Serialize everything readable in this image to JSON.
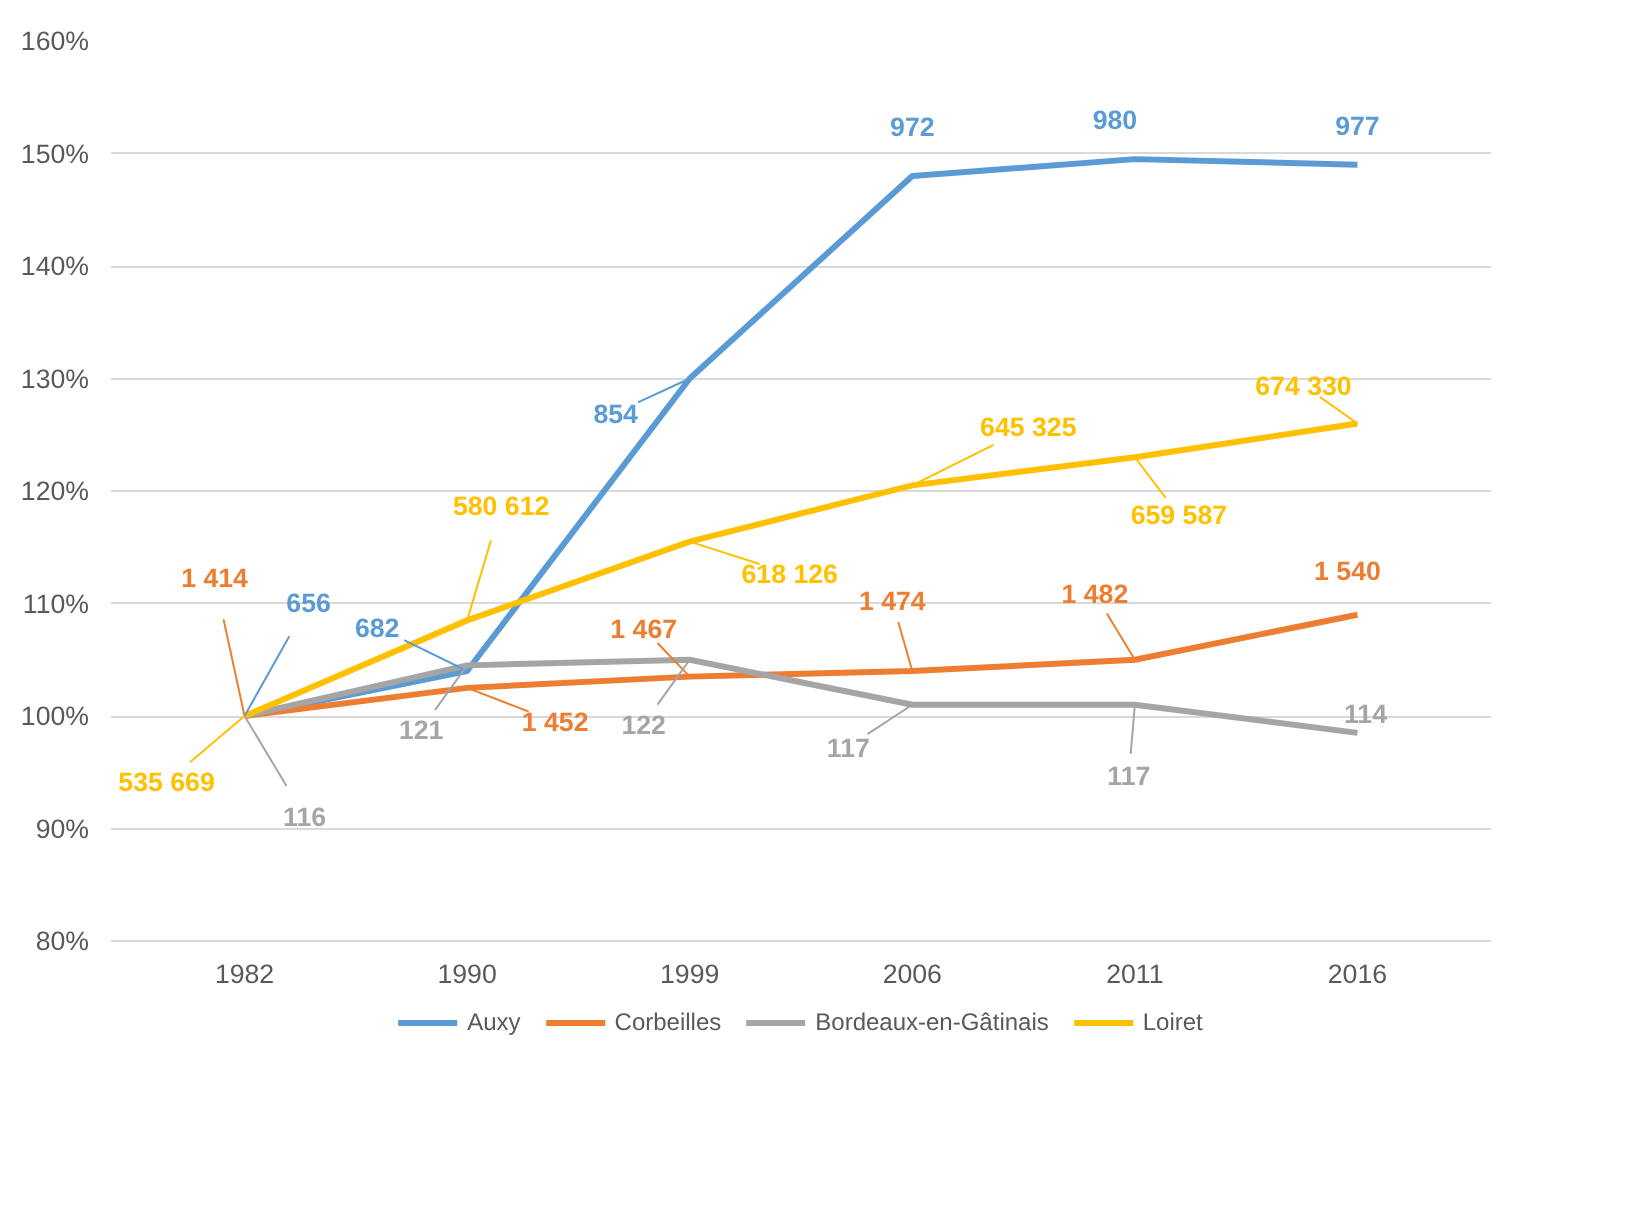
{
  "chart_data": {
    "type": "line",
    "categories": [
      "1982",
      "1990",
      "1999",
      "2006",
      "2011",
      "2016"
    ],
    "ylim": [
      80,
      160
    ],
    "yticks": [
      {
        "value": 80,
        "label": "80%"
      },
      {
        "value": 90,
        "label": "90%"
      },
      {
        "value": 100,
        "label": "100%"
      },
      {
        "value": 110,
        "label": "110%"
      },
      {
        "value": 120,
        "label": "120%"
      },
      {
        "value": 130,
        "label": "130%"
      },
      {
        "value": 140,
        "label": "140%"
      },
      {
        "value": 150,
        "label": "150%"
      },
      {
        "value": 160,
        "label": "160%"
      }
    ],
    "grid": "y",
    "legend": "bottom",
    "line_style": "solid",
    "series": [
      {
        "name": "Auxy",
        "color": "#5b9bd5",
        "values": [
          100,
          104,
          130,
          148,
          149.5,
          149
        ]
      },
      {
        "name": "Corbeilles",
        "color": "#ed7d31",
        "values": [
          100,
          102.5,
          103.5,
          104,
          105,
          109
        ]
      },
      {
        "name": "Bordeaux-en-Gâtinais",
        "color": "#a5a5a5",
        "values": [
          100,
          104.5,
          105,
          101,
          101,
          98.5
        ]
      },
      {
        "name": "Loiret",
        "color": "#ffc000",
        "values": [
          100,
          108.5,
          115.5,
          120.5,
          123,
          126
        ]
      }
    ],
    "annotations": [
      {
        "text": "656",
        "x": "1982",
        "y": 100
      },
      {
        "text": "682",
        "x": "1990",
        "y": 104
      },
      {
        "text": "854",
        "x": "1999",
        "y": 130
      },
      {
        "text": "972",
        "x": "2006",
        "y": 148
      },
      {
        "text": "980",
        "x": "2011",
        "y": 149.5
      },
      {
        "text": "977",
        "x": "2016",
        "y": 149
      },
      {
        "text": "1 414",
        "x": "1982",
        "y": 100
      },
      {
        "text": "1 452",
        "x": "1990",
        "y": 102.5
      },
      {
        "text": "1 467",
        "x": "1999",
        "y": 103.5
      },
      {
        "text": "1 474",
        "x": "2006",
        "y": 104
      },
      {
        "text": "1 482",
        "x": "2011",
        "y": 105
      },
      {
        "text": "1 540",
        "x": "2016",
        "y": 109
      },
      {
        "text": "116",
        "x": "1982",
        "y": 100
      },
      {
        "text": "121",
        "x": "1990",
        "y": 104.5
      },
      {
        "text": "122",
        "x": "1999",
        "y": 105
      },
      {
        "text": "117",
        "x": "2006",
        "y": 101
      },
      {
        "text": "117",
        "x": "2011",
        "y": 101
      },
      {
        "text": "114",
        "x": "2016",
        "y": 98.5
      },
      {
        "text": "535 669",
        "x": "1982",
        "y": 100
      },
      {
        "text": "580 612",
        "x": "1990",
        "y": 108.5
      },
      {
        "text": "618 126",
        "x": "1999",
        "y": 115.5
      },
      {
        "text": "645 325",
        "x": "2006",
        "y": 120.5
      },
      {
        "text": "659 587",
        "x": "2011",
        "y": 123
      },
      {
        "text": "674 330",
        "x": "2016",
        "y": 126
      }
    ]
  }
}
